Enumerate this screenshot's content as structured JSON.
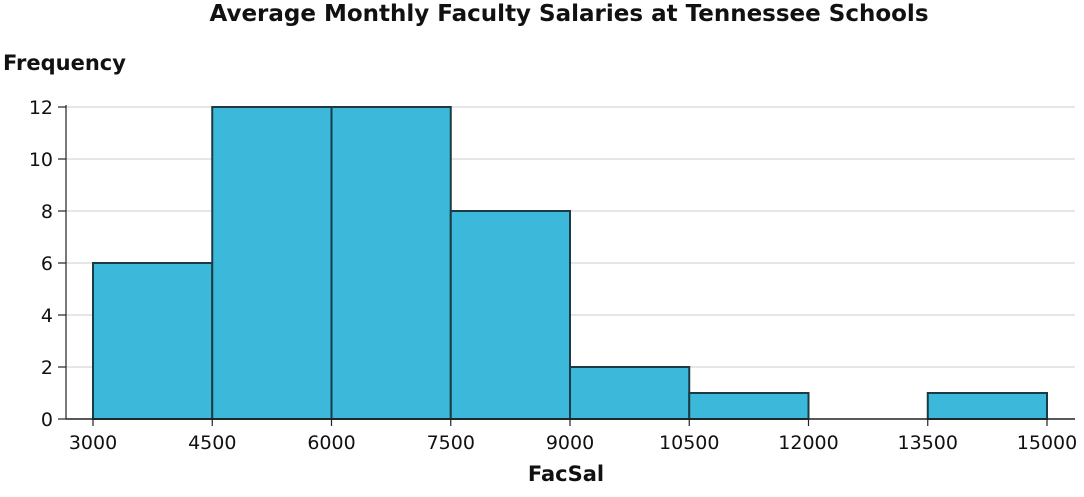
{
  "chart_data": {
    "type": "bar",
    "title": "Average Monthly Faculty Salaries at Tennessee Schools",
    "xlabel": "FacSal",
    "ylabel": "Frequency",
    "bins": [
      {
        "start": 3000,
        "end": 4500,
        "count": 6
      },
      {
        "start": 4500,
        "end": 6000,
        "count": 12
      },
      {
        "start": 6000,
        "end": 7500,
        "count": 12
      },
      {
        "start": 7500,
        "end": 9000,
        "count": 8
      },
      {
        "start": 9000,
        "end": 10500,
        "count": 2
      },
      {
        "start": 10500,
        "end": 12000,
        "count": 1
      },
      {
        "start": 12000,
        "end": 13500,
        "count": 0
      },
      {
        "start": 13500,
        "end": 15000,
        "count": 1
      }
    ],
    "xticks": [
      "3000",
      "4500",
      "6000",
      "7500",
      "9000",
      "10500",
      "12000",
      "13500",
      "15000"
    ],
    "yticks": [
      "0",
      "2",
      "4",
      "6",
      "8",
      "10",
      "12"
    ],
    "xlim": [
      3000,
      15000
    ],
    "ylim": [
      0,
      12
    ],
    "grid": true,
    "colors": {
      "bar_fill": "#3cb9da",
      "bar_edge": "#1b3a44",
      "grid": "#cccccc",
      "axis": "#222222"
    }
  }
}
